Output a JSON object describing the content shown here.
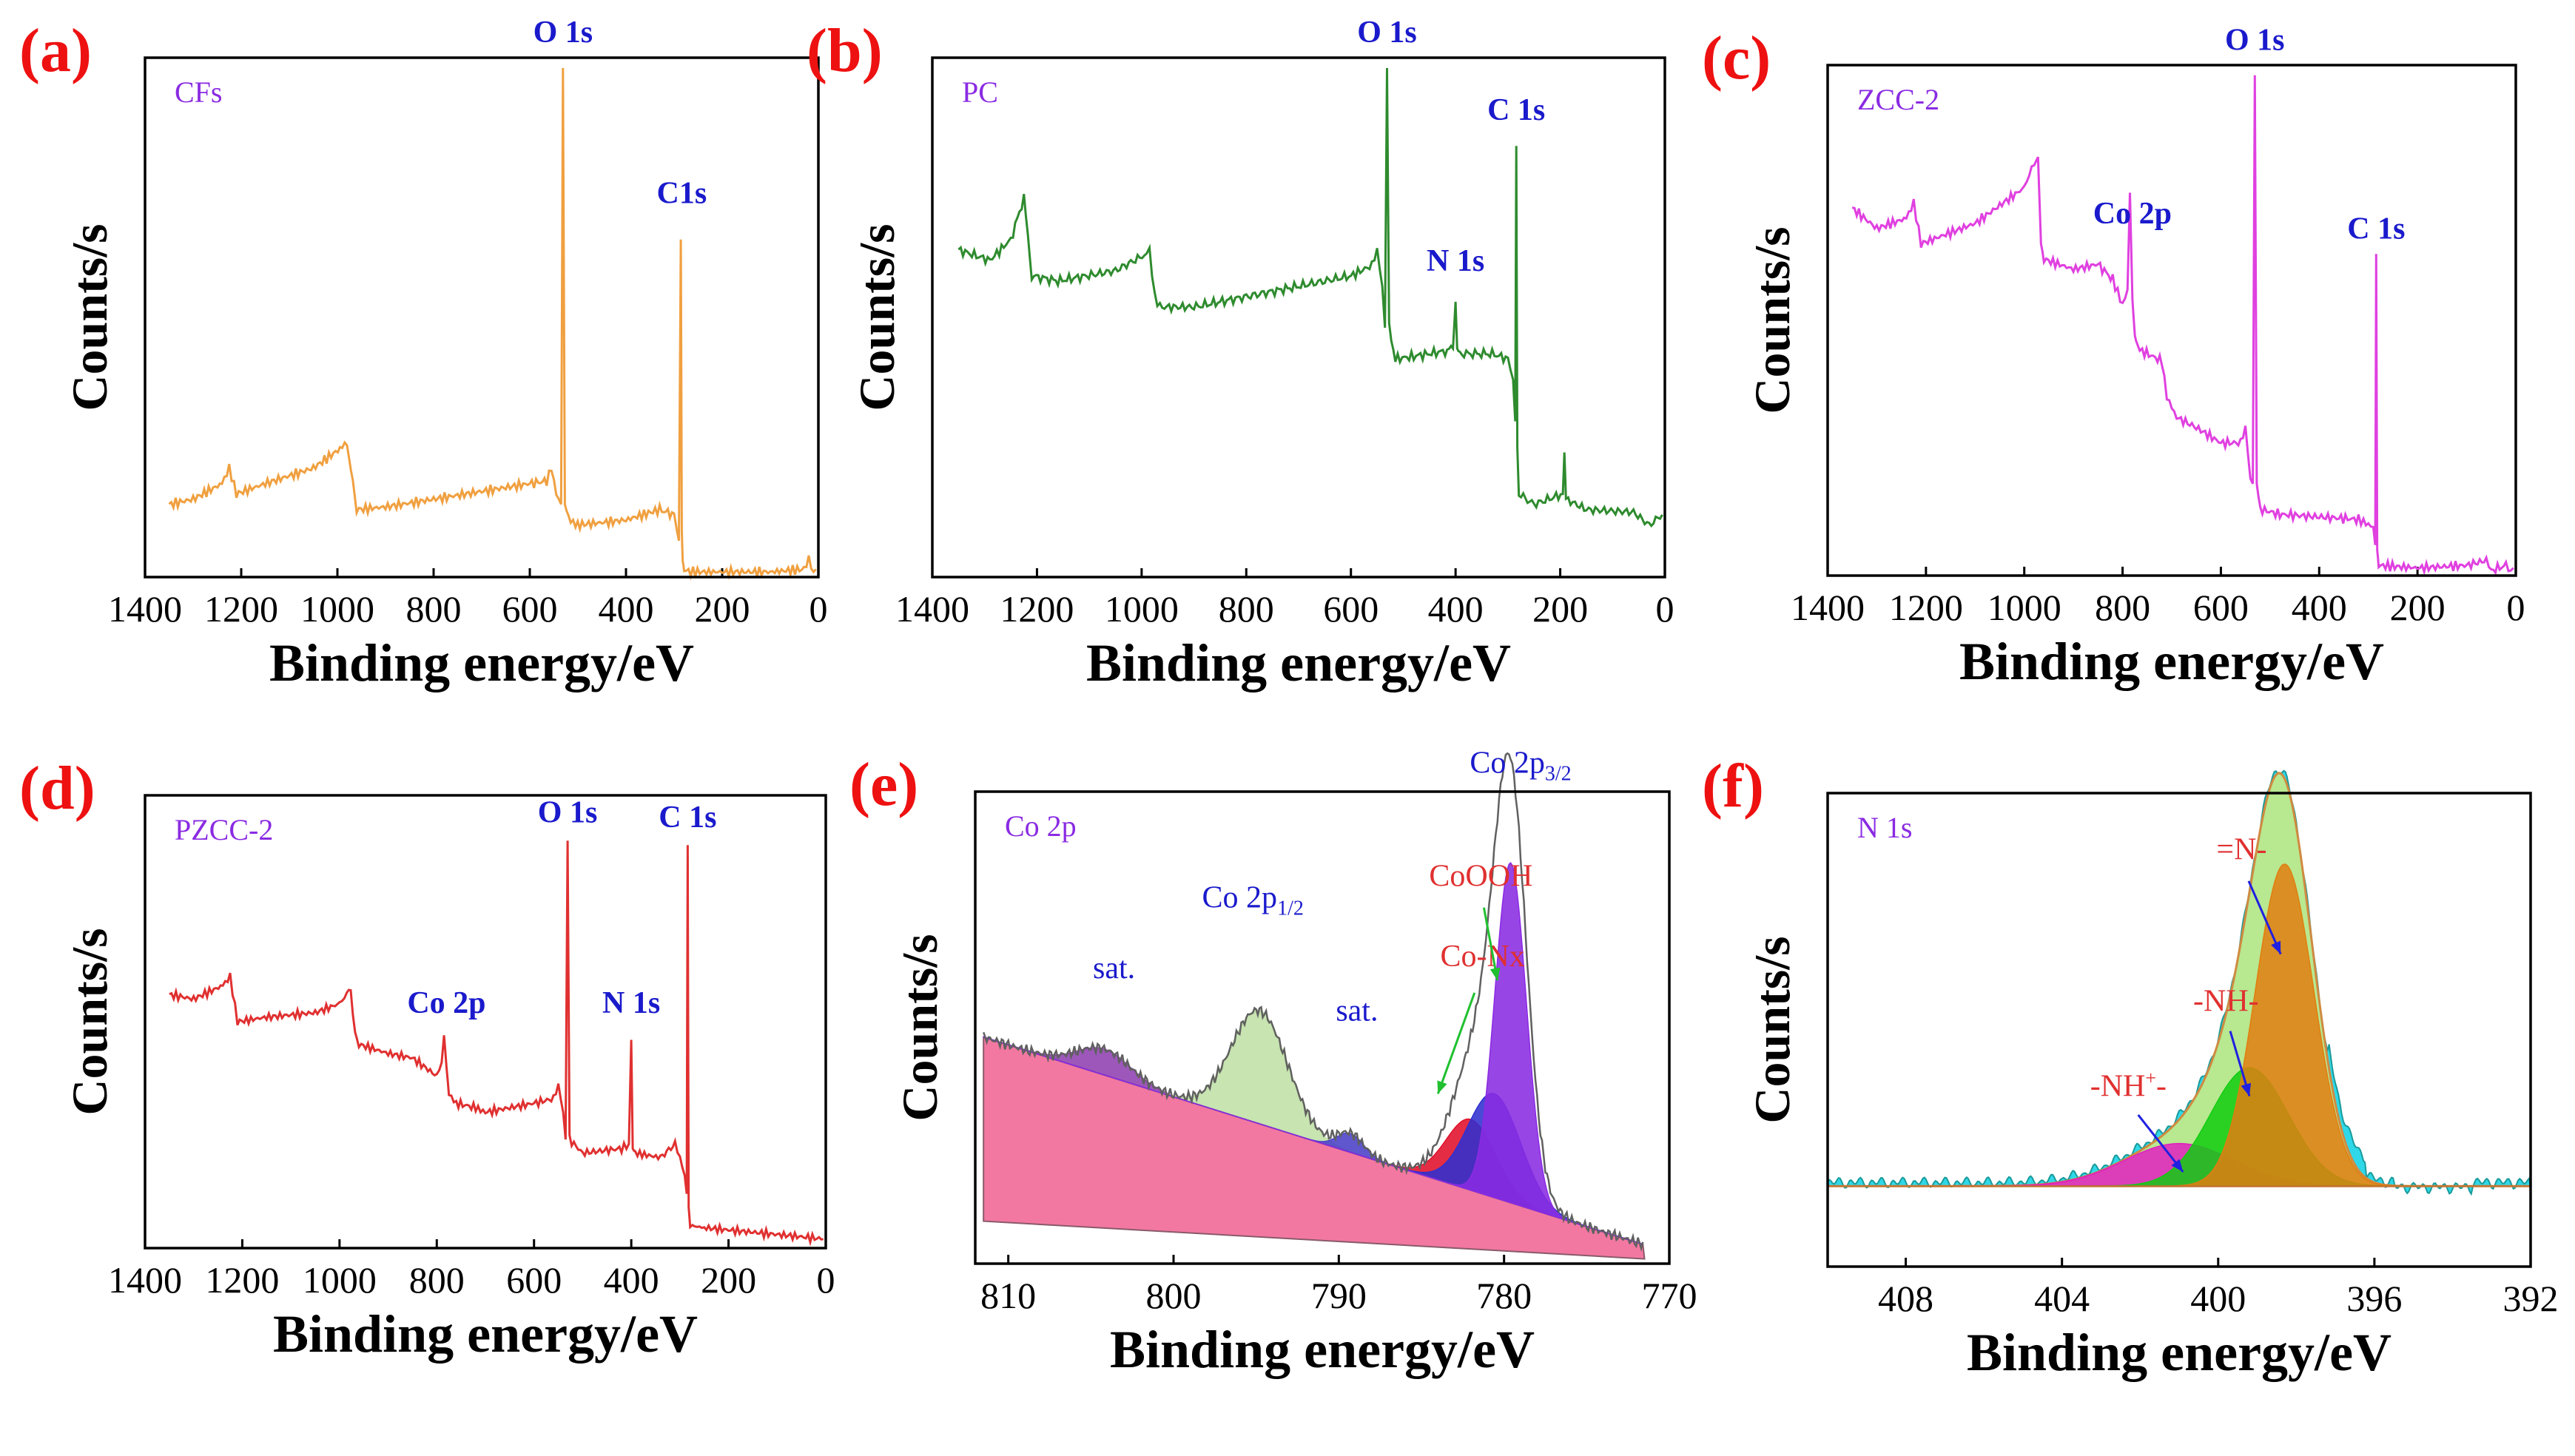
{
  "chart_data": [
    {
      "panel": "(a)",
      "type": "line",
      "inset_label": "CFs",
      "xlabel": "Binding energy/eV",
      "ylabel": "Counts/s",
      "xlim": [
        1400,
        0
      ],
      "ylim": [
        0,
        10
      ],
      "xticks": [
        1400,
        1200,
        1000,
        800,
        600,
        400,
        200,
        0
      ],
      "color": "#f0a040",
      "series": [
        {
          "name": "CFs",
          "x": [
            1350,
            1300,
            1240,
            1225,
            1210,
            1150,
            1050,
            990,
            980,
            968,
            960,
            900,
            800,
            700,
            600,
            565,
            555,
            545,
            535,
            531,
            527,
            520,
            505,
            450,
            400,
            330,
            300,
            290,
            286,
            284,
            282,
            279,
            270,
            200,
            100,
            30,
            20,
            10,
            5
          ],
          "y": [
            1.4,
            1.5,
            1.8,
            2.1,
            1.6,
            1.8,
            2.1,
            2.5,
            2.6,
            1.8,
            1.3,
            1.35,
            1.5,
            1.65,
            1.8,
            1.85,
            2.1,
            1.6,
            1.4,
            9.8,
            1.4,
            1.15,
            1.0,
            1.05,
            1.1,
            1.3,
            1.2,
            0.7,
            6.5,
            0.9,
            0.3,
            0.15,
            0.1,
            0.1,
            0.1,
            0.15,
            0.35,
            0.1,
            0.15
          ]
        }
      ],
      "annotations": [
        {
          "text": "O 1s",
          "x": 531,
          "y": 10.3,
          "color": "#1a1acc"
        },
        {
          "text": "C1s",
          "x": 284,
          "y": 7.2,
          "color": "#1a1acc"
        }
      ]
    },
    {
      "panel": "(b)",
      "type": "line",
      "inset_label": "PC",
      "xlabel": "Binding energy/eV",
      "ylabel": "Counts/s",
      "xlim": [
        1400,
        0
      ],
      "ylim": [
        0,
        10
      ],
      "xticks": [
        1400,
        1200,
        1000,
        800,
        600,
        400,
        200,
        0
      ],
      "color": "#2e8b2e",
      "series": [
        {
          "name": "PC",
          "x": [
            1350,
            1290,
            1250,
            1225,
            1210,
            1160,
            1050,
            995,
            985,
            975,
            965,
            900,
            800,
            700,
            600,
            560,
            550,
            540,
            535,
            531,
            527,
            515,
            480,
            420,
            405,
            400,
            397,
            392,
            330,
            300,
            290,
            286,
            284,
            282,
            279,
            250,
            195,
            192,
            189,
            150,
            60,
            30,
            5
          ],
          "y": [
            6.3,
            6.1,
            6.5,
            7.3,
            5.8,
            5.7,
            5.9,
            6.2,
            6.3,
            5.4,
            5.2,
            5.2,
            5.4,
            5.6,
            5.8,
            6.0,
            6.3,
            5.6,
            4.8,
            9.8,
            4.8,
            4.2,
            4.25,
            4.35,
            4.4,
            5.3,
            4.4,
            4.3,
            4.3,
            4.2,
            3.8,
            3.0,
            8.3,
            2.5,
            1.6,
            1.4,
            1.6,
            2.4,
            1.5,
            1.3,
            1.25,
            1.0,
            1.2
          ]
        }
      ],
      "annotations": [
        {
          "text": "O 1s",
          "x": 531,
          "y": 10.3,
          "color": "#1a1acc"
        },
        {
          "text": "C 1s",
          "x": 284,
          "y": 8.8,
          "color": "#1a1acc"
        },
        {
          "text": "N 1s",
          "x": 400,
          "y": 5.9,
          "color": "#1a1acc"
        }
      ]
    },
    {
      "panel": "(c)",
      "type": "line",
      "inset_label": "ZCC-2",
      "xlabel": "Binding energy/eV",
      "ylabel": "Counts/s",
      "xlim": [
        1400,
        0
      ],
      "ylim": [
        0,
        10
      ],
      "xticks": [
        1400,
        1200,
        1000,
        800,
        600,
        400,
        200,
        0
      ],
      "color": "#e040e0",
      "series": [
        {
          "name": "ZCC-2",
          "x": [
            1350,
            1300,
            1240,
            1225,
            1210,
            1100,
            1000,
            980,
            972,
            966,
            960,
            900,
            850,
            820,
            800,
            790,
            785,
            780,
            775,
            770,
            760,
            720,
            710,
            700,
            690,
            650,
            600,
            560,
            550,
            540,
            535,
            531,
            527,
            520,
            480,
            400,
            320,
            300,
            290,
            286,
            284,
            282,
            279,
            200,
            100,
            60,
            50,
            20,
            10,
            5
          ],
          "y": [
            7.2,
            6.8,
            7.0,
            7.3,
            6.5,
            6.9,
            7.6,
            8.1,
            8.2,
            6.5,
            6.2,
            6.0,
            6.1,
            5.8,
            5.3,
            5.6,
            7.5,
            5.4,
            4.7,
            4.5,
            4.4,
            4.2,
            3.5,
            3.3,
            3.1,
            2.9,
            2.6,
            2.6,
            2.9,
            1.9,
            1.8,
            9.8,
            1.8,
            1.3,
            1.2,
            1.15,
            1.1,
            1.0,
            0.95,
            0.6,
            6.3,
            0.5,
            0.2,
            0.15,
            0.2,
            0.3,
            0.1,
            0.2,
            0.1,
            0.15
          ]
        }
      ],
      "annotations": [
        {
          "text": "O 1s",
          "x": 531,
          "y": 10.3,
          "color": "#1a1acc"
        },
        {
          "text": "C 1s",
          "x": 284,
          "y": 6.6,
          "color": "#1a1acc"
        },
        {
          "text": "Co 2p",
          "x": 780,
          "y": 6.9,
          "color": "#1a1acc"
        }
      ]
    },
    {
      "panel": "(d)",
      "type": "line",
      "inset_label": "PZCC-2",
      "xlabel": "Binding energy/eV",
      "ylabel": "Counts/s",
      "xlim": [
        1400,
        0
      ],
      "ylim": [
        0,
        10
      ],
      "xticks": [
        1400,
        1200,
        1000,
        800,
        600,
        400,
        200,
        0
      ],
      "color": "#e03030",
      "series": [
        {
          "name": "PZCC-2",
          "x": [
            1350,
            1300,
            1240,
            1225,
            1210,
            1150,
            1050,
            1000,
            985,
            977,
            968,
            960,
            900,
            850,
            800,
            790,
            785,
            780,
            775,
            760,
            720,
            700,
            650,
            600,
            560,
            550,
            540,
            535,
            531,
            527,
            500,
            420,
            405,
            400,
            397,
            392,
            340,
            310,
            300,
            290,
            286,
            284,
            282,
            279,
            250,
            200,
            150,
            100,
            50,
            5
          ],
          "y": [
            5.6,
            5.5,
            5.8,
            6.0,
            5.0,
            5.1,
            5.2,
            5.4,
            5.6,
            5.7,
            4.7,
            4.5,
            4.3,
            4.2,
            3.8,
            4.1,
            4.7,
            4.0,
            3.4,
            3.2,
            3.1,
            3.0,
            3.1,
            3.2,
            3.3,
            3.6,
            3.0,
            2.4,
            9.0,
            2.4,
            2.1,
            2.2,
            2.3,
            4.6,
            2.2,
            2.1,
            2.0,
            2.3,
            2.0,
            1.6,
            1.2,
            8.9,
            0.9,
            0.5,
            0.45,
            0.4,
            0.35,
            0.3,
            0.25,
            0.2
          ]
        }
      ],
      "annotations": [
        {
          "text": "O 1s",
          "x": 531,
          "y": 9.4,
          "color": "#1a1acc"
        },
        {
          "text": "C 1s",
          "x": 284,
          "y": 9.3,
          "color": "#1a1acc"
        },
        {
          "text": "N 1s",
          "x": 400,
          "y": 5.2,
          "color": "#1a1acc"
        },
        {
          "text": "Co 2p",
          "x": 780,
          "y": 5.2,
          "color": "#1a1acc"
        }
      ]
    },
    {
      "panel": "(e)",
      "type": "area",
      "inset_label": "Co 2p",
      "xlabel": "Binding energy/eV",
      "ylabel": "Counts/s",
      "xlim": [
        812,
        770
      ],
      "ylim": [
        0,
        10
      ],
      "xticks": [
        810,
        800,
        790,
        780,
        770
      ],
      "raw_color": "#606060",
      "background": {
        "x1": 811.5,
        "y1": 4.8,
        "x2": 771.5,
        "y2": 0.4,
        "color": "#f06090"
      },
      "components": [
        {
          "name": "sat.",
          "center": 804.2,
          "height": 0.55,
          "width": 1.6,
          "color": "#9040b0"
        },
        {
          "name": "Co 2p1/2",
          "center": 794.8,
          "height": 2.4,
          "width": 1.7,
          "color": "#bfe0a6"
        },
        {
          "name": "sat.",
          "center": 789.3,
          "height": 0.4,
          "width": 0.8,
          "color": "#4a40c8"
        },
        {
          "name": "Co-Nx",
          "center": 782.0,
          "height": 1.5,
          "width": 1.5,
          "color": "#e0102a"
        },
        {
          "name": "CoOOH",
          "center": 780.6,
          "height": 2.2,
          "width": 1.6,
          "color": "#3030d0"
        },
        {
          "name": "Co 2p3/2",
          "center": 779.6,
          "height": 7.2,
          "width": 0.95,
          "color": "#8a2be2"
        }
      ],
      "annotations": [
        {
          "text": "sat.",
          "x": 803.6,
          "y": 6.05,
          "color": "#1a1acc"
        },
        {
          "text": "Co 2p",
          "sub": "1/2",
          "x": 795.2,
          "y": 7.55,
          "color": "#1a1acc"
        },
        {
          "text": "sat.",
          "x": 788.9,
          "y": 5.15,
          "color": "#1a1acc"
        },
        {
          "text": "Co-Nx",
          "x": 781.3,
          "y": 6.3,
          "color": "#e03030",
          "arrow_to": [
            784.0,
            3.6
          ]
        },
        {
          "text": "CoOOH",
          "x": 781.4,
          "y": 8.0,
          "color": "#e03030",
          "arrow_to": [
            780.4,
            6.0
          ]
        },
        {
          "text": "Co 2p",
          "sub": "3/2",
          "x": 779.0,
          "y": 10.4,
          "color": "#1a1acc"
        }
      ]
    },
    {
      "panel": "(f)",
      "type": "area",
      "inset_label": "N 1s",
      "xlabel": "Binding energy/eV",
      "ylabel": "Counts/s",
      "xlim": [
        410,
        392
      ],
      "ylim": [
        0,
        10
      ],
      "xticks": [
        408,
        404,
        400,
        396,
        392
      ],
      "raw_color": "#1a9a9a",
      "raw_fill": "#2fd8e8",
      "baseline": 1.7,
      "components": [
        {
          "name": "-NH+-",
          "center": 401.0,
          "height": 0.9,
          "width": 1.4,
          "color": "#e020c0"
        },
        {
          "name": "-NH-",
          "center": 399.2,
          "height": 2.5,
          "width": 1.0,
          "color": "#10cc10"
        },
        {
          "name": "=N-",
          "center": 398.3,
          "height": 6.8,
          "width": 0.75,
          "color": "#e07e10"
        }
      ],
      "envelope_color": "#b8e890",
      "annotations": [
        {
          "text": "=N-",
          "x": 399.4,
          "y": 8.6,
          "color": "#e03030",
          "arrow_to": [
            398.4,
            6.6
          ]
        },
        {
          "text": "-NH-",
          "x": 399.8,
          "y": 5.4,
          "color": "#e03030",
          "arrow_to": [
            399.2,
            3.6
          ]
        },
        {
          "text": "-NH",
          "sup": "+",
          "tail": "-",
          "x": 402.3,
          "y": 3.6,
          "color": "#e03030",
          "arrow_to": [
            400.9,
            2.0
          ]
        }
      ]
    }
  ]
}
